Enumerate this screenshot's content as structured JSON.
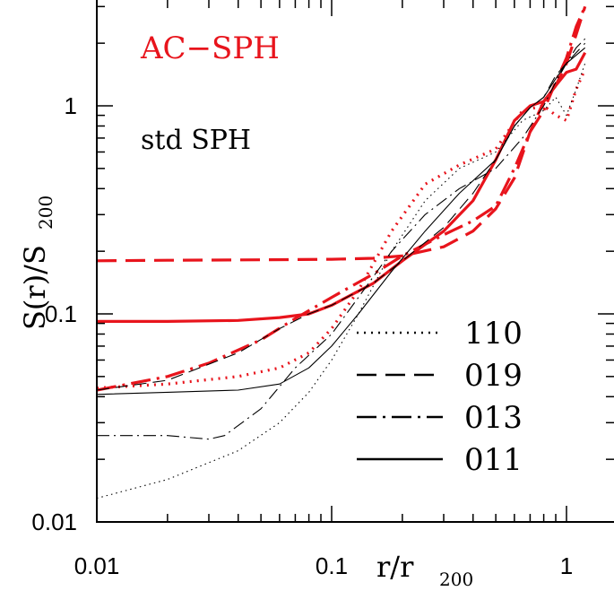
{
  "chart_data": {
    "type": "line",
    "xscale": "log",
    "yscale": "log",
    "xlim": [
      0.01,
      1.2
    ],
    "ylim": [
      0.01,
      3.0
    ],
    "x_ticks": [
      {
        "value": 0.01,
        "label": "0.01"
      },
      {
        "value": 0.1,
        "label": "0.1"
      },
      {
        "value": 1,
        "label": "1"
      }
    ],
    "y_ticks": [
      {
        "value": 0.01,
        "label": "0.01"
      },
      {
        "value": 0.1,
        "label": "0.1"
      },
      {
        "value": 1,
        "label": "1"
      }
    ],
    "xlabel": {
      "main": "r/r",
      "sub": "200"
    },
    "ylabel": {
      "main": "S(r)/S",
      "sub": "200"
    },
    "annotations": [
      {
        "text": "AC−SPH",
        "color": "#e8141c"
      },
      {
        "text": "std SPH",
        "color": "#000000"
      }
    ],
    "legend": {
      "placement": "bottom-right",
      "entries": [
        {
          "label": "110",
          "style": "dotted"
        },
        {
          "label": "019",
          "style": "dashed"
        },
        {
          "label": "013",
          "style": "dash-dot"
        },
        {
          "label": "011",
          "style": "solid"
        }
      ]
    },
    "series": [
      {
        "group": "AC−SPH",
        "run": "110",
        "style": "dotted",
        "color": "#e8141c",
        "x": [
          0.01,
          0.02,
          0.04,
          0.06,
          0.08,
          0.1,
          0.13,
          0.18,
          0.25,
          0.35,
          0.5,
          0.65,
          0.8,
          0.9,
          1.0,
          1.1,
          1.2
        ],
        "y": [
          0.044,
          0.046,
          0.05,
          0.055,
          0.065,
          0.085,
          0.13,
          0.25,
          0.42,
          0.52,
          0.62,
          0.95,
          1.0,
          0.9,
          0.85,
          1.2,
          1.5
        ]
      },
      {
        "group": "AC−SPH",
        "run": "019",
        "style": "dashed",
        "color": "#e8141c",
        "x": [
          0.01,
          0.02,
          0.05,
          0.1,
          0.15,
          0.2,
          0.3,
          0.4,
          0.5,
          0.6,
          0.7,
          0.8,
          0.9,
          1.0,
          1.1,
          1.2
        ],
        "y": [
          0.18,
          0.181,
          0.182,
          0.183,
          0.185,
          0.19,
          0.21,
          0.25,
          0.32,
          0.45,
          0.75,
          1.05,
          1.25,
          1.6,
          2.2,
          3.0
        ]
      },
      {
        "group": "AC−SPH",
        "run": "013",
        "style": "dash-dot",
        "color": "#e8141c",
        "x": [
          0.01,
          0.02,
          0.03,
          0.05,
          0.07,
          0.1,
          0.15,
          0.2,
          0.3,
          0.4,
          0.5,
          0.6,
          0.7,
          0.8,
          0.9,
          1.0,
          1.1,
          1.2
        ],
        "y": [
          0.043,
          0.05,
          0.058,
          0.075,
          0.095,
          0.12,
          0.155,
          0.19,
          0.24,
          0.28,
          0.33,
          0.5,
          0.75,
          0.95,
          1.3,
          1.7,
          2.4,
          3.0
        ]
      },
      {
        "group": "AC−SPH",
        "run": "011",
        "style": "solid",
        "color": "#e8141c",
        "x": [
          0.01,
          0.02,
          0.04,
          0.06,
          0.08,
          0.1,
          0.15,
          0.2,
          0.3,
          0.4,
          0.5,
          0.6,
          0.7,
          0.8,
          0.9,
          1.0,
          1.1,
          1.2
        ],
        "y": [
          0.092,
          0.092,
          0.093,
          0.096,
          0.1,
          0.11,
          0.14,
          0.18,
          0.25,
          0.35,
          0.55,
          0.85,
          1.0,
          1.05,
          1.25,
          1.45,
          1.5,
          1.8
        ]
      },
      {
        "group": "std SPH",
        "run": "110",
        "style": "dotted",
        "color": "#000000",
        "x": [
          0.01,
          0.02,
          0.04,
          0.06,
          0.08,
          0.1,
          0.13,
          0.18,
          0.25,
          0.35,
          0.5,
          0.65,
          0.8,
          0.9,
          1.0,
          1.1,
          1.2
        ],
        "y": [
          0.013,
          0.016,
          0.022,
          0.03,
          0.042,
          0.06,
          0.1,
          0.2,
          0.35,
          0.5,
          0.6,
          0.85,
          0.95,
          1.1,
          0.9,
          1.2,
          1.6
        ]
      },
      {
        "group": "std SPH",
        "run": "019",
        "style": "dashed",
        "color": "#000000",
        "x": [
          0.01,
          0.02,
          0.04,
          0.06,
          0.08,
          0.1,
          0.15,
          0.2,
          0.3,
          0.4,
          0.5,
          0.6,
          0.7,
          0.8,
          0.9,
          1.0,
          1.1,
          1.2
        ],
        "y": [
          0.043,
          0.048,
          0.065,
          0.085,
          0.1,
          0.11,
          0.14,
          0.18,
          0.26,
          0.38,
          0.55,
          0.8,
          0.98,
          1.1,
          1.4,
          1.6,
          1.8,
          2.0
        ]
      },
      {
        "group": "std SPH",
        "run": "013",
        "style": "dash-dot",
        "color": "#000000",
        "x": [
          0.01,
          0.02,
          0.03,
          0.035,
          0.05,
          0.07,
          0.1,
          0.13,
          0.18,
          0.25,
          0.35,
          0.5,
          0.65,
          0.8,
          0.9,
          1.0,
          1.1,
          1.2
        ],
        "y": [
          0.026,
          0.026,
          0.025,
          0.026,
          0.035,
          0.055,
          0.08,
          0.12,
          0.2,
          0.3,
          0.4,
          0.5,
          0.7,
          1.0,
          1.3,
          1.6,
          1.9,
          2.1
        ]
      },
      {
        "group": "std SPH",
        "run": "011",
        "style": "solid",
        "color": "#000000",
        "x": [
          0.01,
          0.02,
          0.04,
          0.06,
          0.08,
          0.1,
          0.13,
          0.18,
          0.25,
          0.35,
          0.5,
          0.6,
          0.7,
          0.8,
          0.9,
          1.0,
          1.1,
          1.2
        ],
        "y": [
          0.041,
          0.042,
          0.043,
          0.046,
          0.055,
          0.07,
          0.1,
          0.16,
          0.25,
          0.38,
          0.55,
          0.8,
          0.98,
          1.1,
          1.35,
          1.6,
          1.75,
          1.9
        ]
      }
    ]
  }
}
